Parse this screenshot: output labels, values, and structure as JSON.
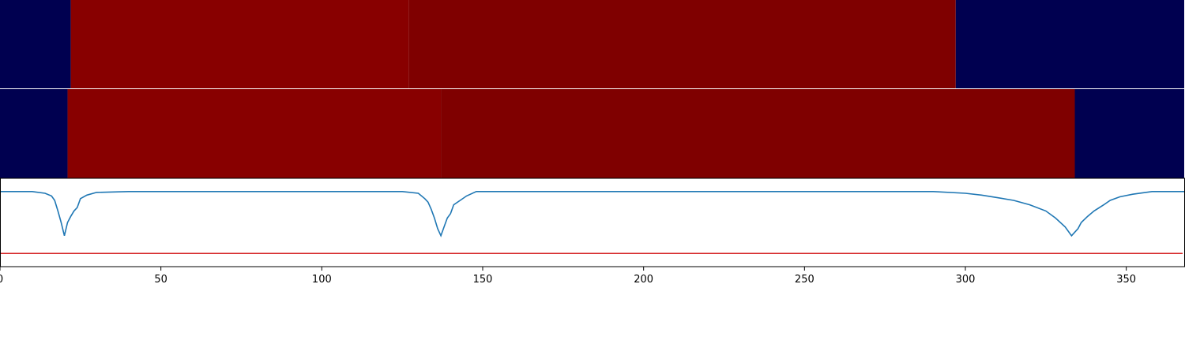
{
  "chart_data": {
    "type": "heatmap",
    "x_ticks": [
      0,
      50,
      100,
      150,
      200,
      250,
      300,
      350
    ],
    "xlim": [
      0,
      368
    ],
    "rows": [
      {
        "segments": [
          {
            "start": 0,
            "end": 22,
            "color": "#000050"
          },
          {
            "start": 22,
            "end": 127,
            "color": "#880000"
          },
          {
            "start": 127,
            "end": 297,
            "color": "#7f0000"
          },
          {
            "start": 297,
            "end": 368,
            "color": "#000050"
          }
        ]
      },
      {
        "segments": [
          {
            "start": 0,
            "end": 21,
            "color": "#000050"
          },
          {
            "start": 21,
            "end": 137,
            "color": "#880000"
          },
          {
            "start": 137,
            "end": 334,
            "color": "#7f0000"
          },
          {
            "start": 334,
            "end": 368,
            "color": "#000050"
          }
        ]
      }
    ],
    "line_panel": {
      "ylim": [
        -0.85,
        0.15
      ],
      "curve_color": "#1f77b4",
      "threshold": -0.7,
      "threshold_color": "#d62728",
      "curve": [
        [
          0,
          0
        ],
        [
          10,
          0
        ],
        [
          14,
          -0.02
        ],
        [
          16,
          -0.05
        ],
        [
          17,
          -0.1
        ],
        [
          18,
          -0.22
        ],
        [
          19,
          -0.35
        ],
        [
          20,
          -0.5
        ],
        [
          21,
          -0.35
        ],
        [
          22,
          -0.28
        ],
        [
          23,
          -0.22
        ],
        [
          24,
          -0.18
        ],
        [
          25,
          -0.08
        ],
        [
          27,
          -0.04
        ],
        [
          30,
          -0.01
        ],
        [
          40,
          0
        ],
        [
          125,
          0
        ],
        [
          130,
          -0.02
        ],
        [
          132,
          -0.08
        ],
        [
          133,
          -0.12
        ],
        [
          134,
          -0.2
        ],
        [
          135,
          -0.3
        ],
        [
          136,
          -0.42
        ],
        [
          137,
          -0.5
        ],
        [
          138,
          -0.4
        ],
        [
          139,
          -0.3
        ],
        [
          140,
          -0.25
        ],
        [
          141,
          -0.15
        ],
        [
          143,
          -0.1
        ],
        [
          145,
          -0.05
        ],
        [
          148,
          0
        ],
        [
          290,
          0
        ],
        [
          300,
          -0.02
        ],
        [
          305,
          -0.04
        ],
        [
          310,
          -0.07
        ],
        [
          315,
          -0.1
        ],
        [
          320,
          -0.15
        ],
        [
          325,
          -0.22
        ],
        [
          328,
          -0.3
        ],
        [
          331,
          -0.4
        ],
        [
          333,
          -0.5
        ],
        [
          335,
          -0.42
        ],
        [
          336,
          -0.35
        ],
        [
          338,
          -0.28
        ],
        [
          340,
          -0.22
        ],
        [
          343,
          -0.15
        ],
        [
          345,
          -0.1
        ],
        [
          348,
          -0.06
        ],
        [
          352,
          -0.03
        ],
        [
          358,
          0
        ],
        [
          368,
          0
        ]
      ]
    }
  }
}
